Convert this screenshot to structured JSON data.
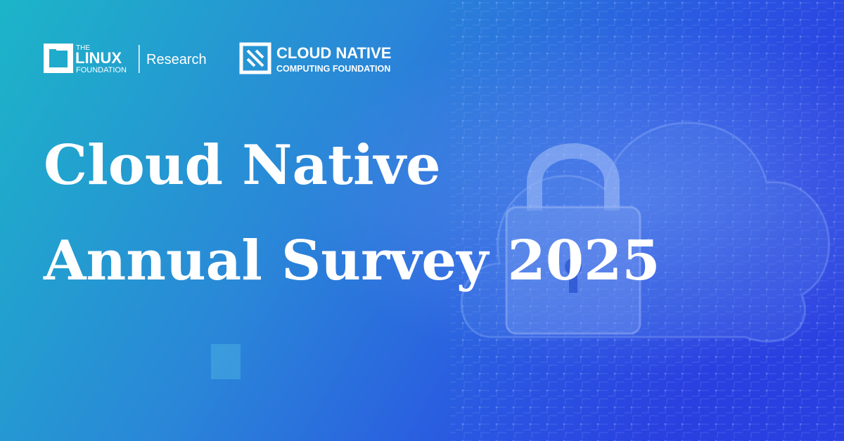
{
  "logos": {
    "linux_foundation": {
      "the": "THE",
      "linux": "LINUX",
      "foundation": "FOUNDATION",
      "division": "Research"
    },
    "cncf": {
      "line1": "CLOUD NATIVE",
      "line2": "COMPUTING FOUNDATION"
    }
  },
  "headline": {
    "lines": [
      "Cloud Native",
      "Annual Survey 2025"
    ]
  }
}
